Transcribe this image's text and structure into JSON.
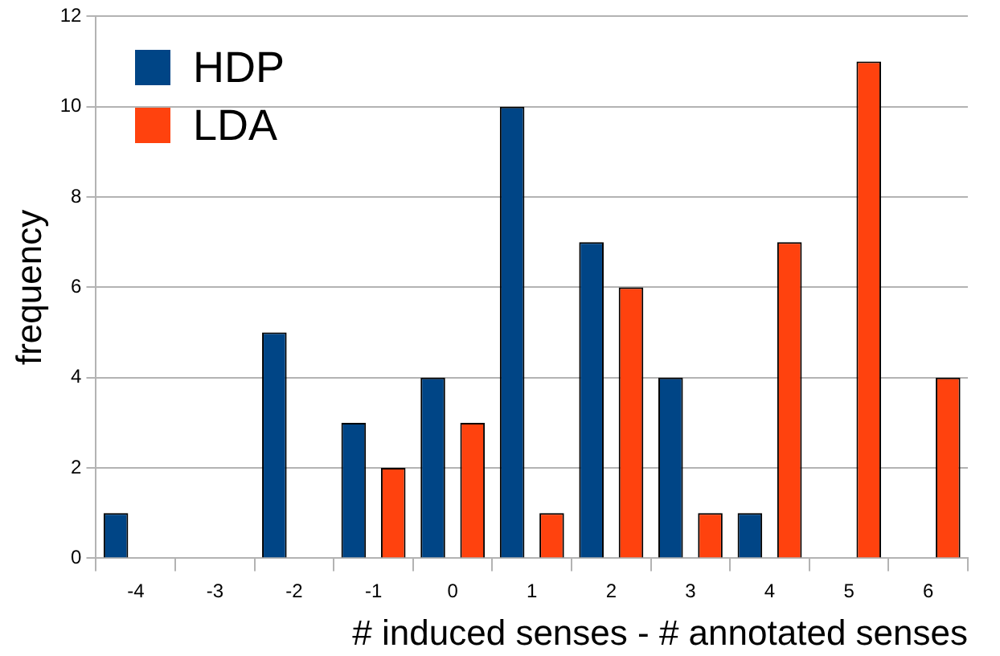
{
  "chart_data": {
    "type": "bar",
    "xlabel": "# induced senses - # annotated senses",
    "ylabel": "frequency",
    "categories": [
      "-4",
      "-3",
      "-2",
      "-1",
      "0",
      "1",
      "2",
      "3",
      "4",
      "5",
      "6"
    ],
    "series": [
      {
        "name": "HDP",
        "color": "#004586",
        "values": [
          1,
          0,
          5,
          3,
          4,
          10,
          7,
          4,
          1,
          0,
          0
        ]
      },
      {
        "name": "LDA",
        "color": "#ff420e",
        "values": [
          0,
          0,
          0,
          2,
          3,
          1,
          6,
          1,
          7,
          11,
          4
        ]
      }
    ],
    "ylim": [
      0,
      12
    ],
    "yticks": [
      0,
      2,
      4,
      6,
      8,
      10,
      12
    ],
    "grid": "y",
    "legend": "top left"
  }
}
